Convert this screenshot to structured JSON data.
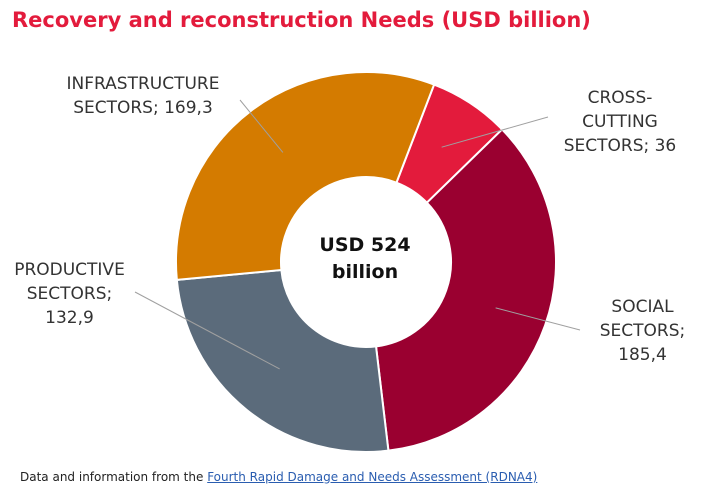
{
  "title": "Recovery and reconstruction Needs (USD billion)",
  "center_label": {
    "line1": "USD 524",
    "line2": "billion"
  },
  "source": {
    "prefix": "Data and information from the",
    "link_text": "Fourth Rapid Damage and Needs Assessment (RDNA4)"
  },
  "labels": {
    "cross_cutting": {
      "line1": "CROSS-",
      "line2": "CUTTING",
      "line3": "SECTORS; 36"
    },
    "social": {
      "line1": "SOCIAL",
      "line2": "SECTORS;",
      "line3": "185,4"
    },
    "productive": {
      "line1": "PRODUCTIVE",
      "line2": "SECTORS;",
      "line3": "132,9"
    },
    "infrastructure": {
      "line1": "INFRASTRUCTURE",
      "line2": "SECTORS; 169,3"
    }
  },
  "chart_data": {
    "type": "pie",
    "donut": true,
    "title": "Recovery and reconstruction Needs (USD billion)",
    "center_text": "USD 524 billion",
    "slices": [
      {
        "label": "CROSS-CUTTING SECTORS",
        "value": 36,
        "color": "#e31b3c"
      },
      {
        "label": "SOCIAL SECTORS",
        "value": 185.4,
        "color": "#9a0030"
      },
      {
        "label": "PRODUCTIVE SECTORS",
        "value": 132.9,
        "color": "#5b6b7b"
      },
      {
        "label": "INFRASTRUCTURE SECTORS",
        "value": 169.3,
        "color": "#d47b00"
      }
    ]
  }
}
